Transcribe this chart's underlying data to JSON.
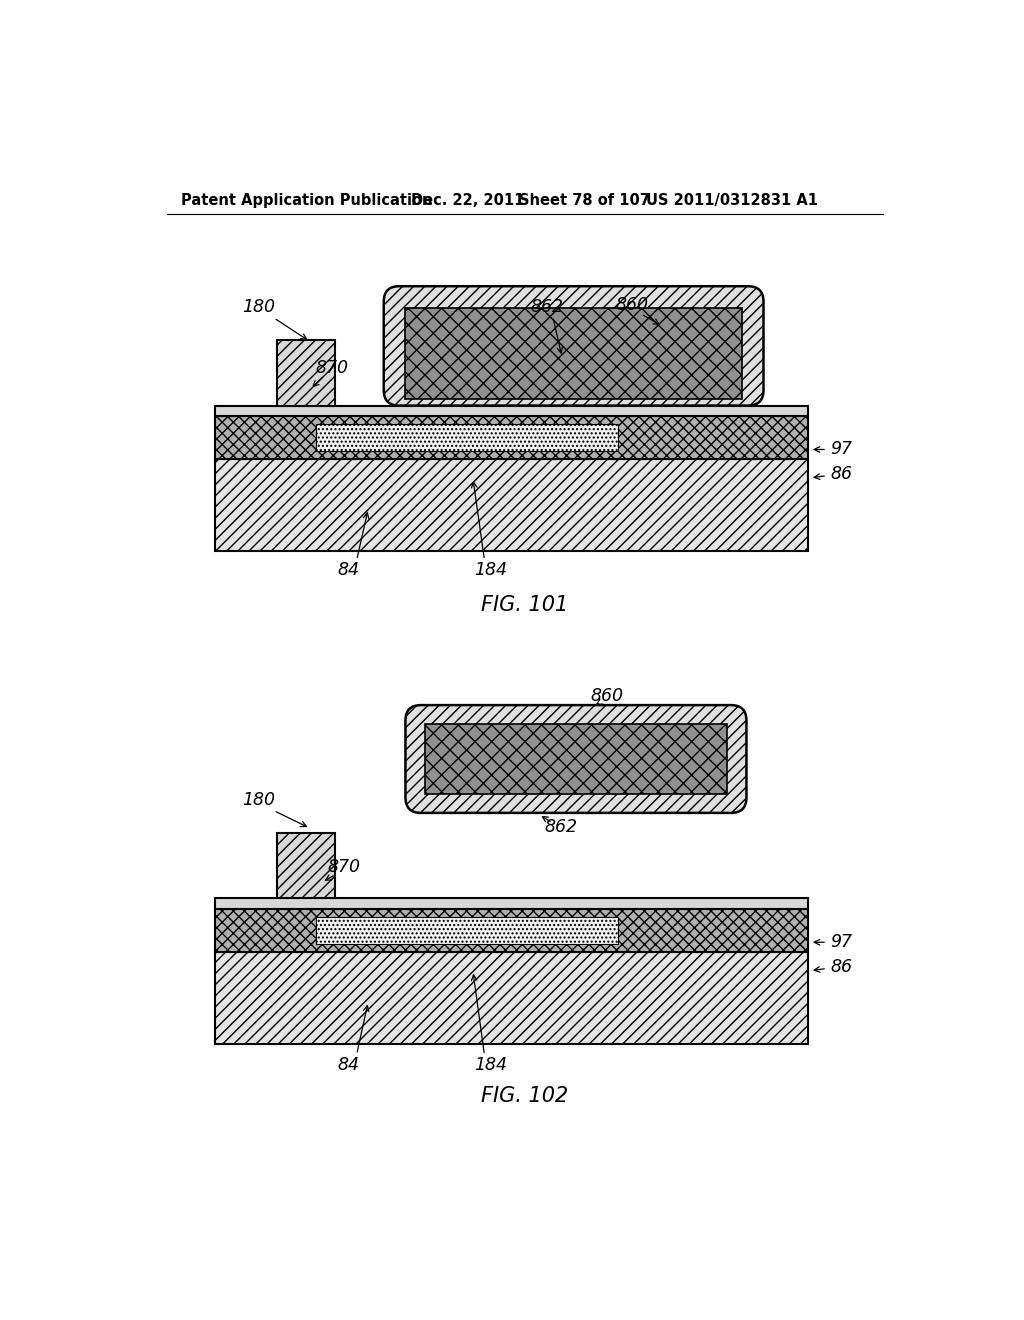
{
  "bg_color": "#ffffff",
  "header_text": "Patent Application Publication",
  "header_date": "Dec. 22, 2011",
  "header_sheet": "Sheet 78 of 107",
  "header_patent": "US 2011/0312831 A1",
  "fig1_label": "FIG. 101",
  "fig2_label": "FIG. 102"
}
